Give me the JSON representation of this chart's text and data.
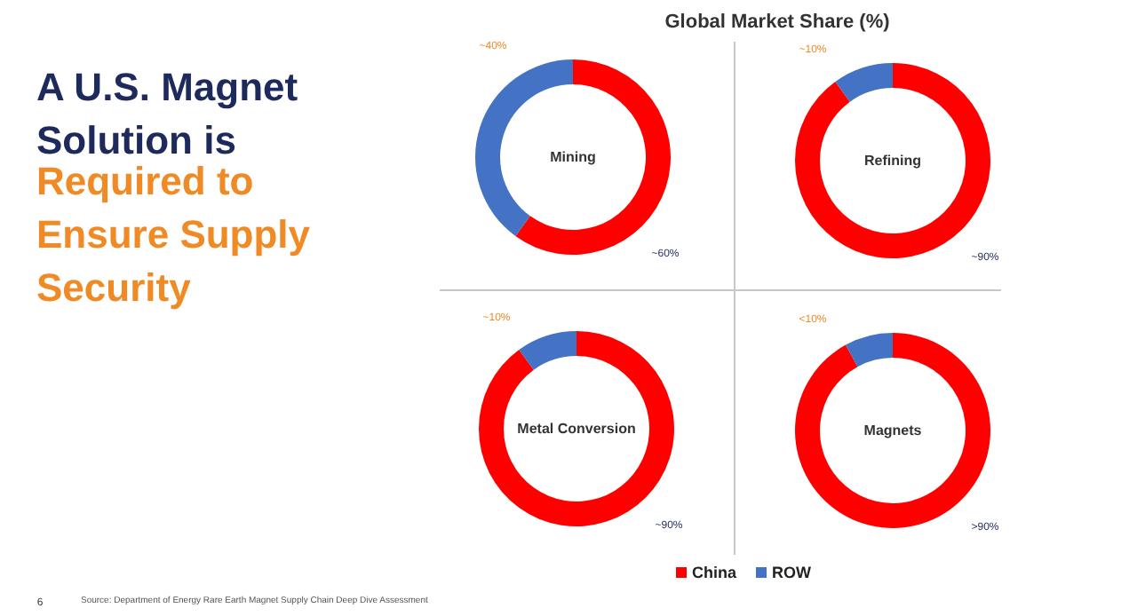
{
  "chart_data": [
    {
      "type": "other",
      "title": "A U.S. Magnet Solution is",
      "subtitle": "Required to Ensure Supply Security",
      "annotations": [
        "Global Market Share (%)",
        "6",
        "Source: Department of Energy Rare Earth Magnet Supply Chain Deep Dive Assessment"
      ]
    },
    {
      "type": "donut",
      "title": "Mining",
      "categories": [
        "China",
        "ROW"
      ],
      "values": [
        60,
        40
      ],
      "colors": [
        "#ff0000",
        "#4472c4"
      ],
      "value_labels": [
        "~60%",
        "~40%"
      ],
      "legend": "bottom"
    },
    {
      "type": "donut",
      "title": "Refining",
      "categories": [
        null,
        null
      ],
      "values": [
        90,
        10
      ],
      "colors": [
        "#ff0000",
        "#4472c4"
      ],
      "value_labels": [
        "~90%",
        "~10%"
      ]
    },
    {
      "type": "donut",
      "title": "Metal Conversion",
      "categories": [
        null,
        null
      ],
      "values": [
        90,
        10
      ],
      "colors": [
        "#ff0000",
        "#4472c4"
      ],
      "value_labels": [
        "~90%",
        "~10%"
      ]
    },
    {
      "type": "donut",
      "title": "Magnets",
      "categories": [
        null,
        null
      ],
      "values": [
        92,
        8
      ],
      "colors": [
        "#ff0000",
        "#4472c4"
      ],
      "value_labels": [
        ">90%",
        "<10%"
      ]
    }
  ]
}
